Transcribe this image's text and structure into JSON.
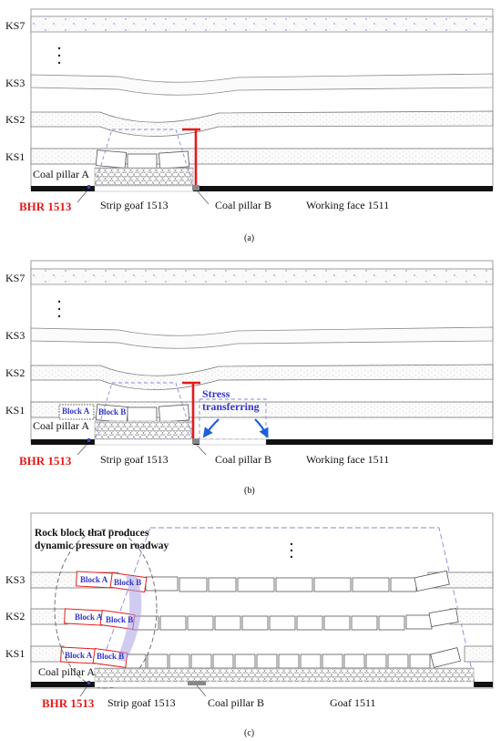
{
  "panel_a": {
    "layers": [
      "KS7",
      "KS3",
      "KS2",
      "KS1"
    ],
    "coal_pillar_a": "Coal pillar A",
    "bhr": "BHR 1513",
    "strip_goaf": "Strip goaf 1513",
    "coal_pillar_b": "Coal pillar B",
    "working_face": "Working face 1511",
    "caption": "(a)"
  },
  "panel_b": {
    "layers": [
      "KS7",
      "KS3",
      "KS2",
      "KS1"
    ],
    "block_a": "Block A",
    "block_b": "Block B",
    "stress": "Stress",
    "transferring": "transferring",
    "coal_pillar_a": "Coal pillar A",
    "bhr": "BHR 1513",
    "strip_goaf": "Strip goaf 1513",
    "coal_pillar_b": "Coal pillar B",
    "working_face": "Working face 1511",
    "caption": "(b)"
  },
  "panel_c": {
    "title_line1": "Rock block that produces",
    "title_line2": "dynamic pressure on roadway",
    "layers": [
      "KS3",
      "KS2",
      "KS1"
    ],
    "block_a": "Block A",
    "block_b": "Block B",
    "coal_pillar_a": "Coal pillar A",
    "bhr": "BHR 1513",
    "strip_goaf": "Strip goaf 1513",
    "coal_pillar_b": "Coal pillar B",
    "goaf": "Goaf 1511",
    "caption": "(c)"
  },
  "colors": {
    "red": "#e31b1b",
    "blue": "#3333cc",
    "dash": "#8a8ad8"
  }
}
